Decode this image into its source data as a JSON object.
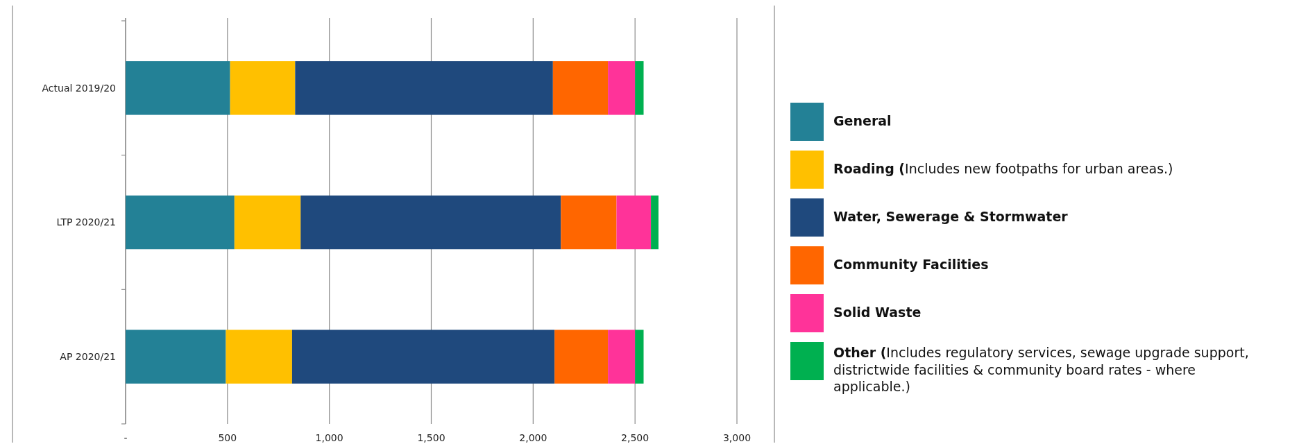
{
  "chart_data": {
    "type": "bar",
    "orientation": "horizontal",
    "stacked": true,
    "categories": [
      "Actual 2019/20",
      "LTP 2020/21",
      "AP 2020/21"
    ],
    "series": [
      {
        "name": "General",
        "color": "#238196",
        "values": [
          513,
          534,
          492
        ]
      },
      {
        "name": "Roading (Includes new footpaths for urban areas.)",
        "color": "#ffc000",
        "values": [
          319,
          325,
          325
        ]
      },
      {
        "name": "Water, Sewerage & Stormwater",
        "color": "#1f497d",
        "values": [
          1265,
          1277,
          1288
        ]
      },
      {
        "name": "Community Facilities",
        "color": "#ff6600",
        "values": [
          270,
          273,
          262
        ]
      },
      {
        "name": "Solid Waste",
        "color": "#ff3399",
        "values": [
          133,
          169,
          133
        ]
      },
      {
        "name": "Other (Includes regulatory services, sewage upgrade support, districtwide facilities & community board rates - where applicable.)",
        "color": "#00b050",
        "values": [
          42,
          37,
          42
        ]
      }
    ],
    "xlim": [
      0,
      3000
    ],
    "xticks": [
      {
        "value": 0,
        "label": "-"
      },
      {
        "value": 500,
        "label": "500"
      },
      {
        "value": 1000,
        "label": "1,000"
      },
      {
        "value": 1500,
        "label": "1,500"
      },
      {
        "value": 2000,
        "label": "2,000"
      },
      {
        "value": 2500,
        "label": "2,500"
      },
      {
        "value": 3000,
        "label": "3,000"
      }
    ],
    "grid": "x",
    "legend": "right"
  }
}
